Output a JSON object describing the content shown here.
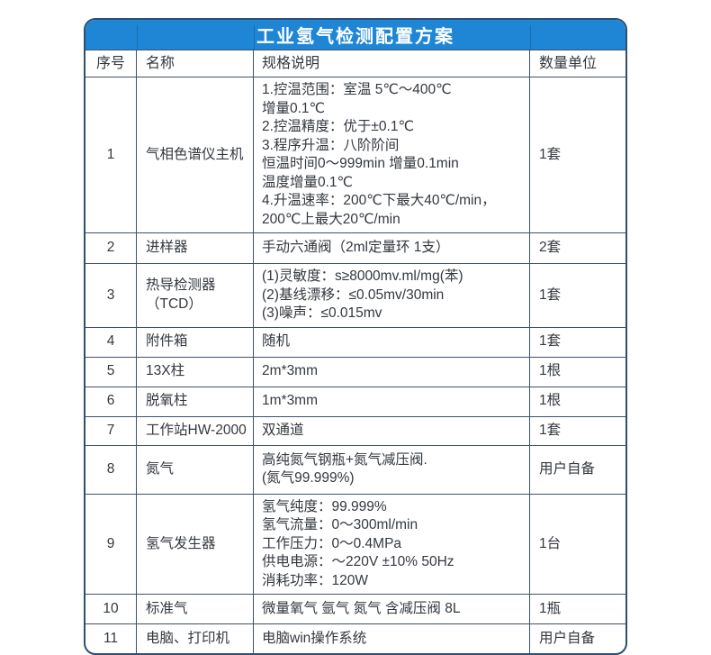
{
  "title": "工业氢气检测配置方案",
  "colors": {
    "title_bar": "#1f86d6",
    "outer_border": "#2e4e74",
    "grid_line": "#40516a",
    "text": "#33383f",
    "title_text": "#ffffff"
  },
  "table": {
    "headers": [
      "序号",
      "名称",
      "规格说明",
      "数量单位"
    ],
    "rows": [
      {
        "no": "1",
        "name": "气相色谱仪主机",
        "spec": [
          "1.控温范围：室温 5℃～400℃",
          "增量0.1℃",
          "2.控温精度：优于±0.1℃",
          "3.程序升温：八阶阶间",
          "恒温时间0～999min 增量0.1min",
          "温度增量0.1℃",
          "4.升温速率：200℃下最大40℃/min，",
          "200℃上最大20℃/min"
        ],
        "qty": "1套"
      },
      {
        "no": "2",
        "name": "进样器",
        "spec": [
          "手动六通阀（2ml定量环 1支）"
        ],
        "qty": "2套"
      },
      {
        "no": "3",
        "name": "热导检测器（TCD）",
        "spec": [
          "(1)灵敏度：s≥8000mv.ml/mg(苯)",
          "(2)基线漂移：≤0.05mv/30min",
          "(3)噪声：≤0.015mv"
        ],
        "qty": "1套"
      },
      {
        "no": "4",
        "name": "附件箱",
        "spec": [
          "随机"
        ],
        "qty": "1套"
      },
      {
        "no": "5",
        "name": "13X柱",
        "spec": [
          "2m*3mm"
        ],
        "qty": "1根"
      },
      {
        "no": "6",
        "name": "脱氧柱",
        "spec": [
          "1m*3mm"
        ],
        "qty": "1根"
      },
      {
        "no": "7",
        "name": "工作站HW-2000",
        "spec": [
          "双通道"
        ],
        "qty": "1套"
      },
      {
        "no": "8",
        "name": "氮气",
        "spec": [
          "高纯氮气钢瓶+氮气减压阀.",
          "(氮气99.999%)"
        ],
        "qty": "用户自备"
      },
      {
        "no": "9",
        "name": "氢气发生器",
        "spec": [
          "氢气纯度：99.999%",
          "氢气流量：0～300ml/min",
          "工作压力：0～0.4MPa",
          "供电电源：～220V ±10% 50Hz",
          "消耗功率：120W"
        ],
        "qty": "1台"
      },
      {
        "no": "10",
        "name": "标准气",
        "spec": [
          "微量氧气 氩气 氮气 含减压阀 8L"
        ],
        "qty": "1瓶"
      },
      {
        "no": "11",
        "name": "电脑、打印机",
        "spec": [
          "电脑win操作系统"
        ],
        "qty": "用户自备"
      }
    ]
  }
}
